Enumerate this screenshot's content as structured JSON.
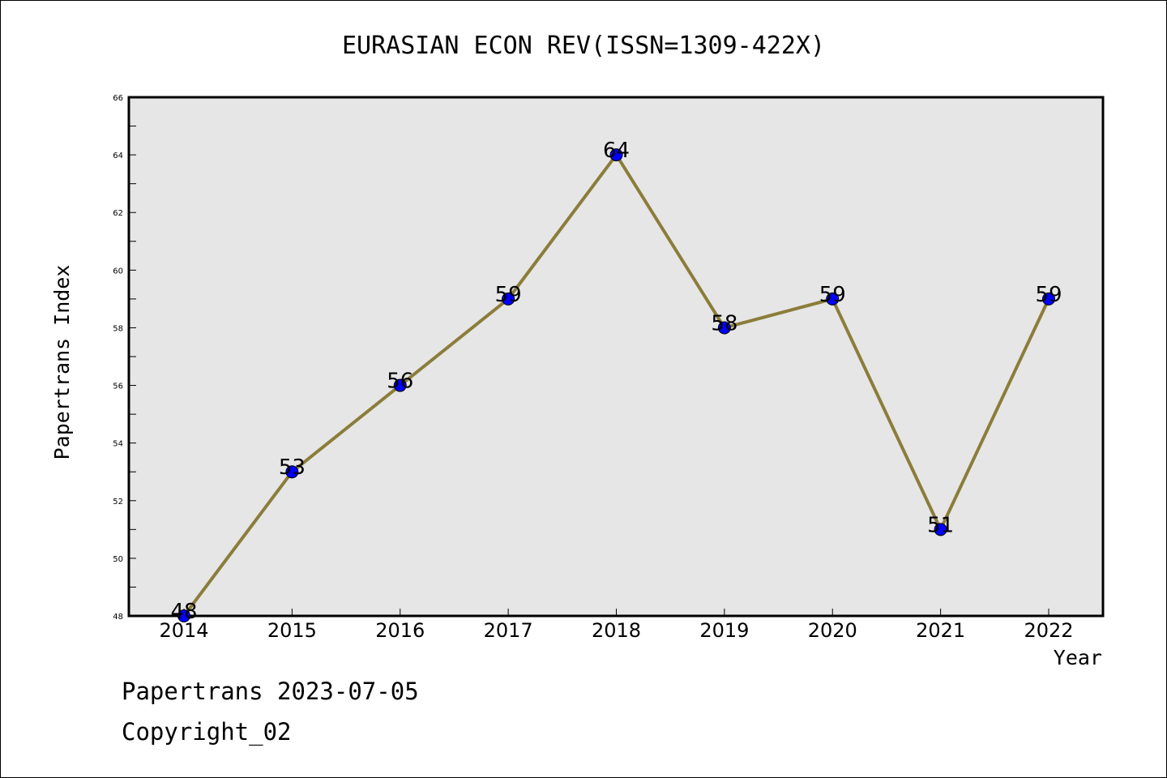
{
  "chart_data": {
    "type": "line",
    "title": "EURASIAN ECON REV(ISSN=1309-422X)",
    "xlabel": "Year",
    "ylabel": "Papertrans Index",
    "categories": [
      "2014",
      "2015",
      "2016",
      "2017",
      "2018",
      "2019",
      "2020",
      "2021",
      "2022"
    ],
    "series": [
      {
        "values": [
          48,
          53,
          56,
          59,
          64,
          58,
          59,
          51,
          59
        ],
        "line_color": "#8b7d3a",
        "marker_color": "#0000ff"
      }
    ],
    "data_labels": [
      "48",
      "53",
      "56",
      "59",
      "64",
      "58",
      "59",
      "51",
      "59"
    ],
    "ylim": [
      48,
      66
    ],
    "y_ticks": [
      "48",
      "50",
      "52",
      "54",
      "56",
      "58",
      "60",
      "62",
      "64",
      "66"
    ],
    "plot_background": "#e6e6e6",
    "grid": false
  },
  "footer": {
    "line1": "Papertrans 2023-07-05",
    "line2": "Copyright_02"
  }
}
